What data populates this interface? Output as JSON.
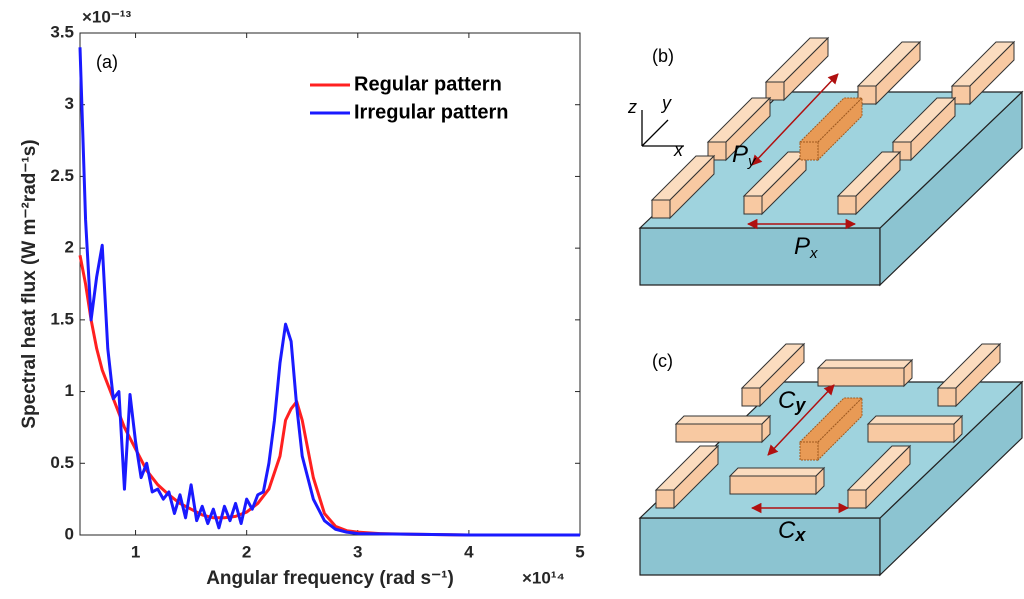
{
  "chart_data": {
    "type": "line",
    "annotation": "(a)",
    "xlabel": "Angular frequency (rad s⁻¹)",
    "ylabel": "Spectral heat flux (W m⁻²rad⁻¹s)",
    "x_multiplier": "×10¹⁴",
    "y_multiplier": "×10⁻¹³",
    "xlim": [
      0.5,
      5
    ],
    "xticks": [
      1,
      2,
      3,
      4,
      5
    ],
    "ylim": [
      0,
      3.5
    ],
    "yticks": [
      0,
      0.5,
      1,
      1.5,
      2,
      2.5,
      3,
      3.5
    ],
    "legend": "upper right",
    "series": [
      {
        "name": "Regular pattern",
        "color": "#ff2020",
        "x": [
          0.5,
          0.55,
          0.6,
          0.65,
          0.7,
          0.8,
          0.9,
          1.0,
          1.1,
          1.2,
          1.3,
          1.4,
          1.5,
          1.6,
          1.7,
          1.8,
          1.9,
          2.0,
          2.1,
          2.2,
          2.3,
          2.35,
          2.4,
          2.45,
          2.5,
          2.6,
          2.7,
          2.8,
          2.9,
          3.0,
          3.2,
          3.5,
          4.0,
          4.5,
          5.0
        ],
        "values": [
          1.95,
          1.75,
          1.5,
          1.3,
          1.15,
          0.95,
          0.75,
          0.6,
          0.45,
          0.35,
          0.28,
          0.22,
          0.18,
          0.14,
          0.12,
          0.12,
          0.13,
          0.16,
          0.22,
          0.32,
          0.55,
          0.8,
          0.88,
          0.93,
          0.8,
          0.4,
          0.15,
          0.06,
          0.03,
          0.02,
          0.01,
          0.005,
          0,
          0,
          0
        ]
      },
      {
        "name": "Irregular pattern",
        "color": "#1a1aff",
        "x": [
          0.5,
          0.55,
          0.6,
          0.65,
          0.7,
          0.75,
          0.8,
          0.85,
          0.9,
          0.95,
          1.0,
          1.05,
          1.1,
          1.15,
          1.2,
          1.25,
          1.3,
          1.35,
          1.4,
          1.45,
          1.5,
          1.55,
          1.6,
          1.65,
          1.7,
          1.75,
          1.8,
          1.85,
          1.9,
          1.95,
          2.0,
          2.05,
          2.1,
          2.15,
          2.2,
          2.25,
          2.3,
          2.35,
          2.4,
          2.45,
          2.5,
          2.6,
          2.7,
          2.8,
          2.9,
          3.0,
          3.5,
          4.0,
          5.0
        ],
        "values": [
          3.4,
          2.2,
          1.5,
          1.8,
          2.02,
          1.3,
          0.95,
          1.0,
          0.32,
          0.98,
          0.65,
          0.4,
          0.5,
          0.3,
          0.32,
          0.25,
          0.3,
          0.15,
          0.28,
          0.12,
          0.35,
          0.1,
          0.2,
          0.08,
          0.18,
          0.05,
          0.2,
          0.1,
          0.22,
          0.08,
          0.25,
          0.18,
          0.28,
          0.3,
          0.5,
          0.8,
          1.2,
          1.47,
          1.35,
          0.9,
          0.55,
          0.25,
          0.1,
          0.04,
          0.02,
          0.01,
          0.005,
          0,
          0
        ]
      }
    ]
  },
  "diagrams": {
    "b": {
      "label": "(b)",
      "axes": {
        "x": "x",
        "y": "y",
        "z": "z"
      },
      "period_x": {
        "letter": "P",
        "sub": "x"
      },
      "period_y": {
        "letter": "P",
        "sub": "y"
      }
    },
    "c": {
      "label": "(c)",
      "period_x": {
        "letter": "C",
        "sub": "x"
      },
      "period_y": {
        "letter": "C",
        "sub": "y"
      }
    }
  }
}
